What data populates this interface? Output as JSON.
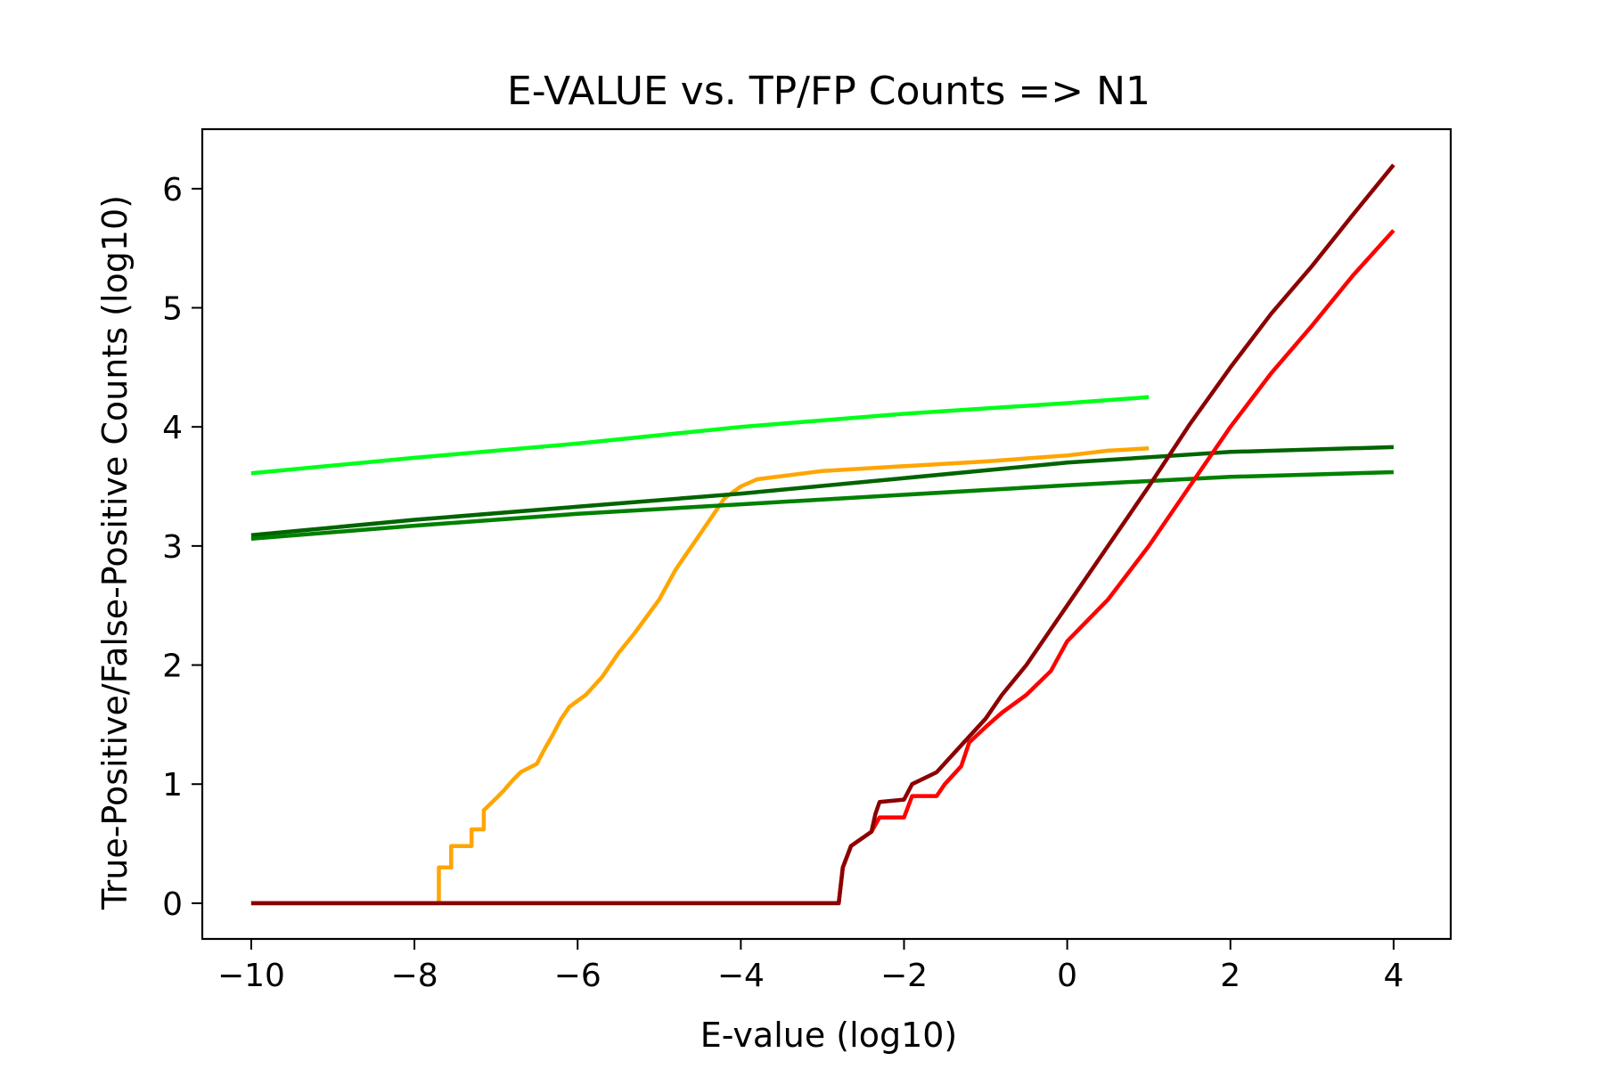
{
  "chart_data": {
    "type": "line",
    "title": "E-VALUE vs. TP/FP Counts => N1",
    "xlabel": "E-value (log10)",
    "ylabel": "True-Positive/False-Positive Counts (log10)",
    "xlim": [
      -10.6,
      4.7
    ],
    "ylim": [
      -0.3,
      6.5
    ],
    "x_ticks": [
      -10,
      -8,
      -6,
      -4,
      -2,
      0,
      2,
      4
    ],
    "x_tick_labels": [
      "−10",
      "−8",
      "−6",
      "−4",
      "−2",
      "0",
      "2",
      "4"
    ],
    "y_ticks": [
      0,
      1,
      2,
      3,
      4,
      5,
      6
    ],
    "y_tick_labels": [
      "0",
      "1",
      "2",
      "3",
      "4",
      "5",
      "6"
    ],
    "grid": false,
    "series": [
      {
        "color": "#00ff1a",
        "points": [
          [
            -10,
            3.61
          ],
          [
            -8,
            3.74
          ],
          [
            -6,
            3.86
          ],
          [
            -4,
            4.0
          ],
          [
            -2,
            4.11
          ],
          [
            0,
            4.2
          ],
          [
            1,
            4.25
          ]
        ]
      },
      {
        "color": "#ffa500",
        "points": [
          [
            -10,
            0
          ],
          [
            -7.7,
            0
          ],
          [
            -7.7,
            0.3
          ],
          [
            -7.55,
            0.3
          ],
          [
            -7.55,
            0.48
          ],
          [
            -7.3,
            0.48
          ],
          [
            -7.3,
            0.62
          ],
          [
            -7.15,
            0.62
          ],
          [
            -7.15,
            0.78
          ],
          [
            -7.0,
            0.88
          ],
          [
            -6.9,
            0.95
          ],
          [
            -6.8,
            1.03
          ],
          [
            -6.7,
            1.1
          ],
          [
            -6.5,
            1.17
          ],
          [
            -6.4,
            1.3
          ],
          [
            -6.3,
            1.42
          ],
          [
            -6.2,
            1.55
          ],
          [
            -6.1,
            1.65
          ],
          [
            -5.9,
            1.75
          ],
          [
            -5.7,
            1.9
          ],
          [
            -5.5,
            2.1
          ],
          [
            -5.3,
            2.27
          ],
          [
            -5.0,
            2.55
          ],
          [
            -4.8,
            2.8
          ],
          [
            -4.5,
            3.1
          ],
          [
            -4.2,
            3.4
          ],
          [
            -4.0,
            3.5
          ],
          [
            -3.8,
            3.56
          ],
          [
            -3.0,
            3.63
          ],
          [
            -2.0,
            3.67
          ],
          [
            -1.0,
            3.71
          ],
          [
            0.0,
            3.76
          ],
          [
            0.5,
            3.8
          ],
          [
            1.0,
            3.82
          ]
        ]
      },
      {
        "color": "#006400",
        "points": [
          [
            -10,
            3.09
          ],
          [
            -8,
            3.22
          ],
          [
            -6,
            3.33
          ],
          [
            -4,
            3.44
          ],
          [
            -2,
            3.57
          ],
          [
            0,
            3.7
          ],
          [
            2,
            3.79
          ],
          [
            4,
            3.83
          ]
        ]
      },
      {
        "color": "#008000",
        "points": [
          [
            -10,
            3.06
          ],
          [
            -8,
            3.17
          ],
          [
            -6,
            3.27
          ],
          [
            -4,
            3.35
          ],
          [
            -2,
            3.43
          ],
          [
            0,
            3.51
          ],
          [
            2,
            3.58
          ],
          [
            4,
            3.62
          ]
        ]
      },
      {
        "color": "#ff0000",
        "points": [
          [
            -10,
            0
          ],
          [
            -2.8,
            0
          ],
          [
            -2.75,
            0.3
          ],
          [
            -2.65,
            0.48
          ],
          [
            -2.4,
            0.6
          ],
          [
            -2.3,
            0.72
          ],
          [
            -2.0,
            0.72
          ],
          [
            -1.9,
            0.9
          ],
          [
            -1.6,
            0.9
          ],
          [
            -1.5,
            1.0
          ],
          [
            -1.3,
            1.15
          ],
          [
            -1.2,
            1.35
          ],
          [
            -1.0,
            1.48
          ],
          [
            -0.8,
            1.6
          ],
          [
            -0.5,
            1.75
          ],
          [
            -0.2,
            1.95
          ],
          [
            0,
            2.2
          ],
          [
            0.5,
            2.55
          ],
          [
            1.0,
            3.0
          ],
          [
            1.5,
            3.5
          ],
          [
            2.0,
            4.0
          ],
          [
            2.5,
            4.45
          ],
          [
            3.0,
            4.85
          ],
          [
            3.5,
            5.27
          ],
          [
            4.0,
            5.65
          ]
        ]
      },
      {
        "color": "#8b0000",
        "points": [
          [
            -10,
            0
          ],
          [
            -2.8,
            0
          ],
          [
            -2.75,
            0.3
          ],
          [
            -2.65,
            0.48
          ],
          [
            -2.4,
            0.6
          ],
          [
            -2.35,
            0.75
          ],
          [
            -2.3,
            0.85
          ],
          [
            -2.0,
            0.87
          ],
          [
            -1.9,
            1.0
          ],
          [
            -1.6,
            1.1
          ],
          [
            -1.4,
            1.25
          ],
          [
            -1.2,
            1.4
          ],
          [
            -1.0,
            1.55
          ],
          [
            -0.8,
            1.75
          ],
          [
            -0.5,
            2.0
          ],
          [
            -0.2,
            2.3
          ],
          [
            0,
            2.5
          ],
          [
            0.5,
            3.0
          ],
          [
            1.0,
            3.5
          ],
          [
            1.5,
            4.02
          ],
          [
            2.0,
            4.5
          ],
          [
            2.5,
            4.95
          ],
          [
            3.0,
            5.35
          ],
          [
            3.5,
            5.78
          ],
          [
            4.0,
            6.2
          ]
        ]
      }
    ]
  }
}
